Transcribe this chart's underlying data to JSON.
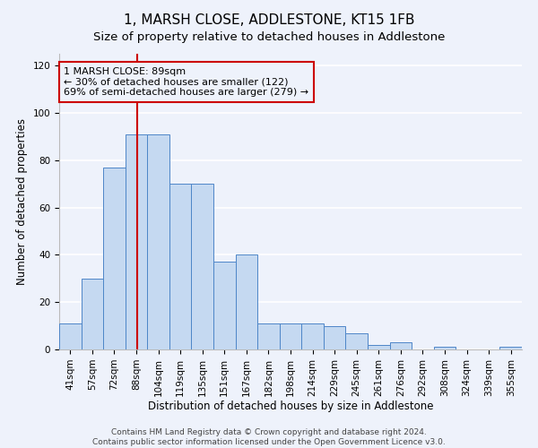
{
  "title": "1, MARSH CLOSE, ADDLESTONE, KT15 1FB",
  "subtitle": "Size of property relative to detached houses in Addlestone",
  "xlabel": "Distribution of detached houses by size in Addlestone",
  "ylabel": "Number of detached properties",
  "categories": [
    "41sqm",
    "57sqm",
    "72sqm",
    "88sqm",
    "104sqm",
    "119sqm",
    "135sqm",
    "151sqm",
    "167sqm",
    "182sqm",
    "198sqm",
    "214sqm",
    "229sqm",
    "245sqm",
    "261sqm",
    "276sqm",
    "292sqm",
    "308sqm",
    "324sqm",
    "339sqm",
    "355sqm"
  ],
  "values": [
    11,
    30,
    77,
    91,
    91,
    70,
    70,
    37,
    40,
    11,
    11,
    11,
    10,
    7,
    2,
    3,
    0,
    1,
    0,
    0,
    1
  ],
  "bar_color": "#c5d9f1",
  "bar_edge_color": "#4e86c8",
  "annotation_title": "1 MARSH CLOSE: 89sqm",
  "annotation_line1": "← 30% of detached houses are smaller (122)",
  "annotation_line2": "69% of semi-detached houses are larger (279) →",
  "annotation_box_color": "#cc0000",
  "vline_color": "#cc0000",
  "ylim": [
    0,
    125
  ],
  "yticks": [
    0,
    20,
    40,
    60,
    80,
    100,
    120
  ],
  "footer_line1": "Contains HM Land Registry data © Crown copyright and database right 2024.",
  "footer_line2": "Contains public sector information licensed under the Open Government Licence v3.0.",
  "bg_color": "#eef2fb",
  "grid_color": "#ffffff",
  "title_fontsize": 11,
  "axis_label_fontsize": 8.5,
  "tick_fontsize": 7.5
}
